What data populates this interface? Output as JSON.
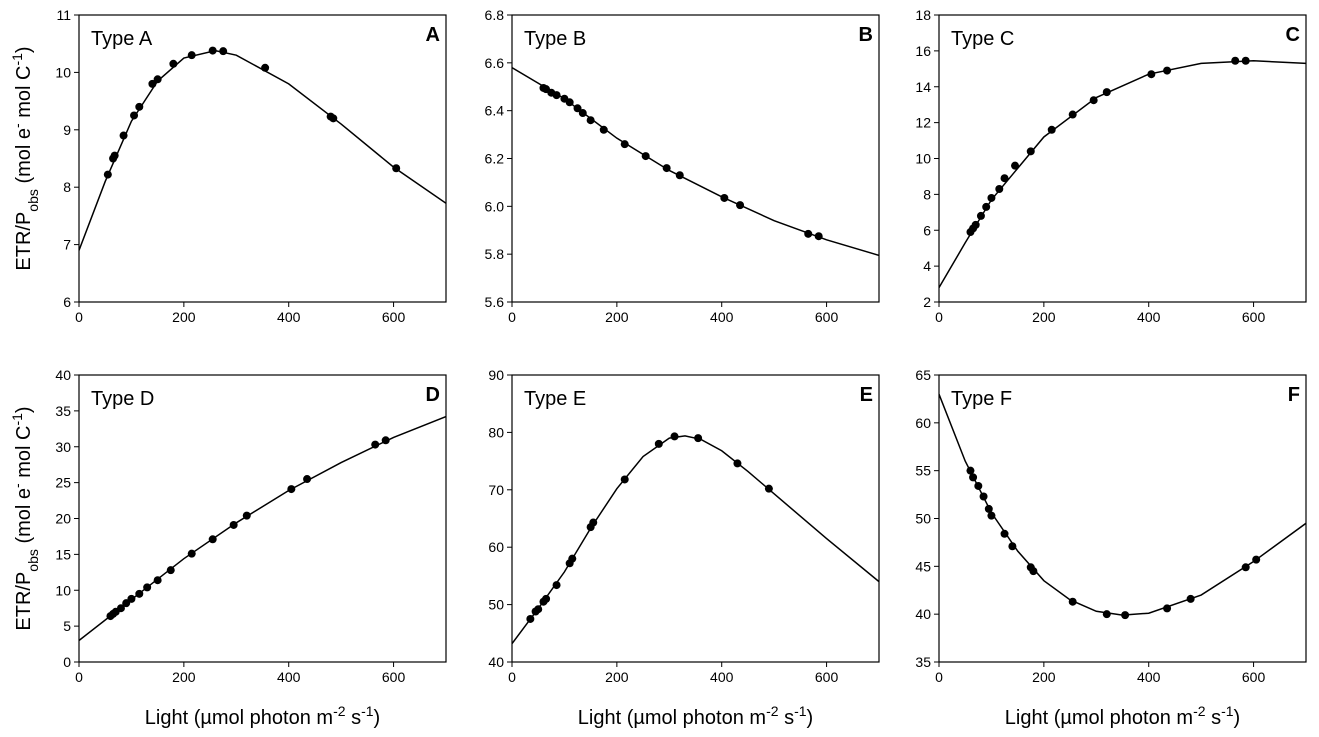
{
  "chart_data": [
    {
      "type": "scatter",
      "annotation": "Type A",
      "panel_label": "A",
      "ylabel": [
        "ETR/P",
        "obs",
        " (mol e",
        "-",
        " mol C",
        "-1",
        ")"
      ],
      "x": [
        55,
        65,
        68,
        85,
        105,
        115,
        140,
        150,
        180,
        215,
        255,
        275,
        355,
        480,
        485,
        605
      ],
      "values": [
        8.22,
        8.5,
        8.55,
        8.9,
        9.25,
        9.4,
        9.8,
        9.88,
        10.15,
        10.3,
        10.38,
        10.37,
        10.08,
        9.23,
        9.2,
        8.33
      ],
      "fit": {
        "x": [
          0,
          50,
          100,
          150,
          200,
          260,
          300,
          400,
          500,
          600,
          700
        ],
        "values": [
          6.9,
          8.1,
          9.15,
          9.85,
          10.25,
          10.38,
          10.3,
          9.8,
          9.1,
          8.35,
          7.72
        ]
      },
      "color": "#000000",
      "xlim": [
        0,
        700
      ],
      "xticks": [
        0,
        200,
        400,
        600
      ],
      "ylim": [
        6,
        11
      ],
      "yticks": [
        6,
        7,
        8,
        9,
        10,
        11
      ]
    },
    {
      "type": "scatter",
      "annotation": "Type B",
      "panel_label": "B",
      "x": [
        60,
        65,
        75,
        85,
        100,
        110,
        125,
        135,
        150,
        175,
        215,
        255,
        295,
        320,
        405,
        435,
        565,
        585
      ],
      "values": [
        6.495,
        6.49,
        6.475,
        6.465,
        6.45,
        6.435,
        6.41,
        6.39,
        6.36,
        6.32,
        6.26,
        6.21,
        6.16,
        6.13,
        6.035,
        6.005,
        5.885,
        5.875
      ],
      "fit": {
        "x": [
          0,
          100,
          200,
          300,
          400,
          500,
          600,
          700
        ],
        "values": [
          6.58,
          6.45,
          6.285,
          6.15,
          6.04,
          5.94,
          5.86,
          5.795
        ]
      },
      "color": "#000000",
      "xlim": [
        0,
        700
      ],
      "xticks": [
        0,
        200,
        400,
        600
      ],
      "ylim": [
        5.6,
        6.8
      ],
      "yticks": [
        5.6,
        5.8,
        {
          "value": 6,
          "label": "6.0"
        },
        6.2,
        6.4,
        6.6,
        6.8
      ]
    },
    {
      "type": "scatter",
      "annotation": "Type C",
      "panel_label": "C",
      "x": [
        60,
        65,
        70,
        80,
        90,
        100,
        115,
        125,
        145,
        175,
        215,
        255,
        295,
        320,
        405,
        435,
        565,
        585
      ],
      "values": [
        5.9,
        6.1,
        6.3,
        6.8,
        7.3,
        7.8,
        8.3,
        8.9,
        9.6,
        10.4,
        11.6,
        12.45,
        13.25,
        13.7,
        14.7,
        14.9,
        15.45,
        15.45
      ],
      "fit": {
        "x": [
          0,
          50,
          100,
          200,
          300,
          400,
          500,
          600,
          700
        ],
        "values": [
          2.8,
          5.3,
          7.7,
          11.2,
          13.4,
          14.7,
          15.3,
          15.45,
          15.3
        ]
      },
      "color": "#000000",
      "xlim": [
        0,
        700
      ],
      "xticks": [
        0,
        200,
        400,
        600
      ],
      "ylim": [
        2,
        18
      ],
      "yticks": [
        2,
        4,
        6,
        8,
        10,
        12,
        14,
        16,
        18
      ]
    },
    {
      "type": "scatter",
      "annotation": "Type D",
      "panel_label": "D",
      "ylabel": [
        "ETR/P",
        "obs",
        " (mol e",
        "-",
        " mol C",
        "-1",
        ")"
      ],
      "xlabel": [
        "Light (µmol photon m",
        "-2",
        " s",
        "-1",
        ")"
      ],
      "x": [
        60,
        65,
        70,
        80,
        90,
        100,
        115,
        130,
        150,
        175,
        215,
        255,
        295,
        320,
        405,
        435,
        565,
        585
      ],
      "values": [
        6.4,
        6.7,
        7.0,
        7.5,
        8.2,
        8.8,
        9.5,
        10.4,
        11.4,
        12.8,
        15.1,
        17.1,
        19.1,
        20.4,
        24.1,
        25.5,
        30.3,
        30.9
      ],
      "fit": {
        "x": [
          0,
          100,
          200,
          300,
          400,
          500,
          600,
          700
        ],
        "values": [
          3.0,
          8.7,
          14.4,
          19.4,
          23.9,
          27.8,
          31.3,
          34.2
        ]
      },
      "color": "#000000",
      "xlim": [
        0,
        700
      ],
      "xticks": [
        0,
        200,
        400,
        600
      ],
      "ylim": [
        0,
        40
      ],
      "yticks": [
        0,
        5,
        10,
        15,
        20,
        25,
        30,
        35,
        40
      ]
    },
    {
      "type": "scatter",
      "annotation": "Type E",
      "panel_label": "E",
      "xlabel": [
        "Light (µmol photon m",
        "-2",
        " s",
        "-1",
        ")"
      ],
      "x": [
        35,
        45,
        50,
        60,
        65,
        85,
        110,
        115,
        150,
        155,
        215,
        280,
        310,
        355,
        430,
        490
      ],
      "values": [
        47.5,
        48.8,
        49.2,
        50.5,
        51,
        53.4,
        57.2,
        58,
        63.5,
        64.3,
        71.8,
        78,
        79.3,
        79,
        74.6,
        70.2
      ],
      "fit": {
        "x": [
          0,
          50,
          100,
          150,
          200,
          250,
          300,
          330,
          360,
          400,
          450,
          500,
          600,
          700
        ],
        "values": [
          43.2,
          49.3,
          55.7,
          63.3,
          70.2,
          75.8,
          79.0,
          79.4,
          78.8,
          76.8,
          73.2,
          69.3,
          61.5,
          54
        ]
      },
      "color": "#000000",
      "xlim": [
        0,
        700
      ],
      "xticks": [
        0,
        200,
        400,
        600
      ],
      "ylim": [
        40,
        90
      ],
      "yticks": [
        40,
        50,
        60,
        70,
        80,
        90
      ]
    },
    {
      "type": "scatter",
      "annotation": "Type F",
      "panel_label": "F",
      "xlabel": [
        "Light (µmol photon m",
        "-2",
        " s",
        "-1",
        ")"
      ],
      "x": [
        60,
        65,
        75,
        85,
        95,
        100,
        125,
        140,
        175,
        180,
        255,
        320,
        355,
        435,
        480,
        585,
        605
      ],
      "values": [
        55,
        54.3,
        53.4,
        52.3,
        51,
        50.3,
        48.4,
        47.1,
        44.9,
        44.5,
        41.3,
        40.0,
        39.9,
        40.6,
        41.6,
        44.9,
        45.7
      ],
      "fit": {
        "x": [
          0,
          50,
          100,
          150,
          200,
          250,
          300,
          350,
          400,
          500,
          600,
          700
        ],
        "values": [
          63,
          56,
          50.6,
          46.6,
          43.5,
          41.5,
          40.3,
          39.9,
          40.1,
          42.0,
          45.5,
          49.5
        ]
      },
      "color": "#000000",
      "xlim": [
        0,
        700
      ],
      "xticks": [
        0,
        200,
        400,
        600
      ],
      "ylim": [
        35,
        65
      ],
      "yticks": [
        35,
        40,
        45,
        50,
        55,
        60,
        65
      ]
    }
  ]
}
